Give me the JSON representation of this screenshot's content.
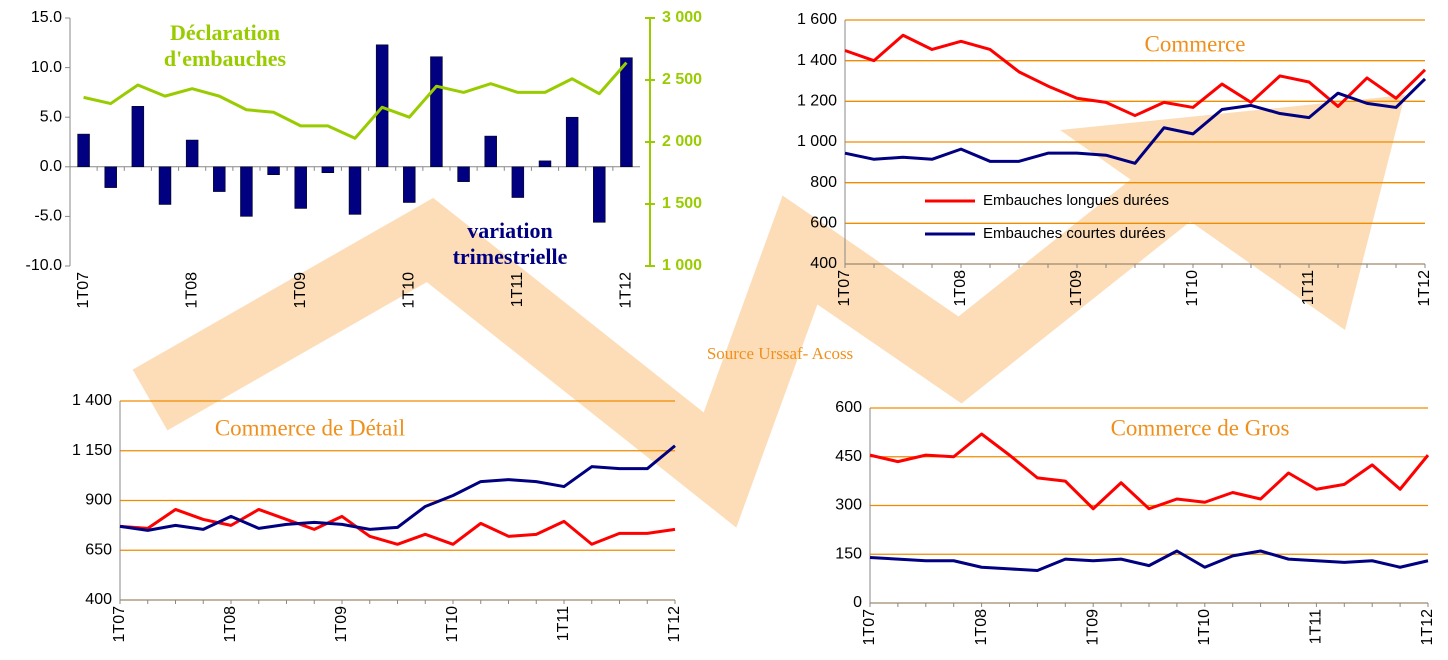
{
  "chart_data": [
    {
      "type": "bar",
      "categories": [
        "1T07",
        null,
        null,
        null,
        "1T08",
        null,
        null,
        null,
        "1T09",
        null,
        null,
        null,
        "1T10",
        null,
        null,
        null,
        "1T11",
        null,
        null,
        null,
        "1T12"
      ],
      "series": [
        {
          "name": "variation trimestrielle",
          "type": "bar",
          "color": "#000080",
          "values": [
            3.3,
            -2.1,
            6.1,
            -3.8,
            2.7,
            -2.5,
            -5.0,
            -0.8,
            -4.2,
            -0.6,
            -4.8,
            12.3,
            -3.6,
            11.1,
            -1.5,
            3.1,
            -3.1,
            0.6,
            5.0,
            -5.6,
            11.0
          ]
        },
        {
          "name": "Déclaration d'embauches",
          "type": "line",
          "axis": "y2",
          "color": "#99cc00",
          "values": [
            2360,
            2310,
            2460,
            2370,
            2430,
            2370,
            2260,
            2240,
            2130,
            2130,
            2030,
            2280,
            2200,
            2450,
            2400,
            2470,
            2400,
            2400,
            2510,
            2390,
            2640
          ]
        }
      ],
      "ylim": [
        -10,
        15
      ],
      "yticks": [
        {
          "value": -10,
          "label": "-10.0"
        },
        {
          "value": -5,
          "label": "-5.0"
        },
        {
          "value": 0,
          "label": "0.0"
        },
        {
          "value": 5,
          "label": "5.0"
        },
        {
          "value": 10,
          "label": "10.0"
        },
        {
          "value": 15,
          "label": "15.0"
        }
      ],
      "y2lim": [
        1000,
        3000
      ],
      "y2ticks": [
        {
          "value": 1000,
          "label": "1 000"
        },
        {
          "value": 1500,
          "label": "1 500"
        },
        {
          "value": 2000,
          "label": "2 000"
        },
        {
          "value": 2500,
          "label": "2 500"
        },
        {
          "value": 3000,
          "label": "3 000"
        }
      ],
      "grid": false
    },
    {
      "type": "line",
      "title": "Commerce",
      "categories": [
        "1T07",
        null,
        null,
        null,
        "1T08",
        null,
        null,
        null,
        "1T09",
        null,
        null,
        null,
        "1T10",
        null,
        null,
        null,
        "1T11",
        null,
        null,
        null,
        "1T12"
      ],
      "series": [
        {
          "name": "Embauches longues durées",
          "color": "#ff0000",
          "values": [
            1450,
            1400,
            1525,
            1455,
            1495,
            1455,
            1345,
            1275,
            1215,
            1195,
            1130,
            1195,
            1170,
            1285,
            1195,
            1325,
            1295,
            1175,
            1315,
            1215,
            1355
          ]
        },
        {
          "name": "Embauches courtes durées",
          "color": "#000080",
          "values": [
            945,
            915,
            925,
            915,
            965,
            905,
            905,
            945,
            945,
            935,
            895,
            1070,
            1040,
            1160,
            1180,
            1140,
            1120,
            1240,
            1190,
            1170,
            1310
          ]
        }
      ],
      "ylim": [
        400,
        1600
      ],
      "yticks": [
        400,
        600,
        800,
        {
          "value": 1000,
          "label": "1 000"
        },
        {
          "value": 1200,
          "label": "1 200"
        },
        {
          "value": 1400,
          "label": "1 400"
        },
        {
          "value": 1600,
          "label": "1 600"
        }
      ],
      "grid": true,
      "legend": "center left"
    },
    {
      "type": "line",
      "title": "Commerce de Détail",
      "categories": [
        "1T07",
        null,
        null,
        null,
        "1T08",
        null,
        null,
        null,
        "1T09",
        null,
        null,
        null,
        "1T10",
        null,
        null,
        null,
        "1T11",
        null,
        null,
        null,
        "1T12"
      ],
      "series": [
        {
          "color": "#ff0000",
          "values": [
            770,
            760,
            855,
            805,
            775,
            855,
            805,
            755,
            820,
            720,
            680,
            730,
            680,
            785,
            720,
            730,
            795,
            680,
            735,
            735,
            755
          ]
        },
        {
          "color": "#000080",
          "values": [
            770,
            750,
            775,
            755,
            820,
            760,
            780,
            790,
            780,
            755,
            765,
            870,
            925,
            995,
            1005,
            995,
            970,
            1070,
            1060,
            1060,
            1175
          ]
        }
      ],
      "ylim": [
        400,
        1400
      ],
      "yticks": [
        400,
        650,
        900,
        {
          "value": 1150,
          "label": "1 150"
        },
        {
          "value": 1400,
          "label": "1 400"
        }
      ],
      "grid": true
    },
    {
      "type": "line",
      "title": "Commerce de Gros",
      "categories": [
        "1T07",
        null,
        null,
        null,
        "1T08",
        null,
        null,
        null,
        "1T09",
        null,
        null,
        null,
        "1T10",
        null,
        null,
        null,
        "1T11",
        null,
        null,
        null,
        "1T12"
      ],
      "series": [
        {
          "color": "#ff0000",
          "values": [
            455,
            435,
            455,
            450,
            520,
            455,
            385,
            375,
            290,
            370,
            290,
            320,
            310,
            340,
            320,
            400,
            350,
            365,
            425,
            350,
            455
          ]
        },
        {
          "color": "#000080",
          "values": [
            140,
            135,
            130,
            130,
            110,
            105,
            100,
            135,
            130,
            135,
            115,
            160,
            110,
            145,
            160,
            135,
            130,
            125,
            130,
            110,
            130
          ]
        }
      ],
      "ylim": [
        0,
        600
      ],
      "yticks": [
        0,
        150,
        300,
        450,
        600
      ],
      "grid": true
    }
  ],
  "source": "Source Urssaf- Acoss"
}
